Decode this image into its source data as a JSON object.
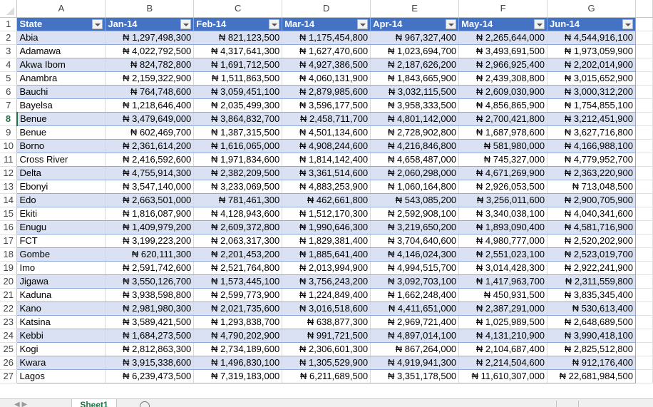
{
  "sheet": {
    "column_letters": [
      "A",
      "B",
      "C",
      "D",
      "E",
      "F",
      "G"
    ],
    "active_row": 8,
    "headers": [
      "State",
      "Jan-14",
      "Feb-14",
      "Mar-14",
      "Apr-14",
      "May-14",
      "Jun-14"
    ],
    "rows": [
      [
        "Abia",
        "₦ 1,297,498,300",
        "₦ 821,123,500",
        "₦ 1,175,454,800",
        "₦ 967,327,400",
        "₦ 2,265,644,000",
        "₦ 4,544,916,100"
      ],
      [
        "Adamawa",
        "₦ 4,022,792,500",
        "₦ 4,317,641,300",
        "₦ 1,627,470,600",
        "₦ 1,023,694,700",
        "₦ 3,493,691,500",
        "₦ 1,973,059,900"
      ],
      [
        "Akwa Ibom",
        "₦ 824,782,800",
        "₦ 1,691,712,500",
        "₦ 4,927,386,500",
        "₦ 2,187,626,200",
        "₦ 2,966,925,400",
        "₦ 2,202,014,900"
      ],
      [
        "Anambra",
        "₦ 2,159,322,900",
        "₦ 1,511,863,500",
        "₦ 4,060,131,900",
        "₦ 1,843,665,900",
        "₦ 2,439,308,800",
        "₦ 3,015,652,900"
      ],
      [
        "Bauchi",
        "₦ 764,748,600",
        "₦ 3,059,451,100",
        "₦ 2,879,985,600",
        "₦ 3,032,115,500",
        "₦ 2,609,030,900",
        "₦ 3,000,312,200"
      ],
      [
        "Bayelsa",
        "₦ 1,218,646,400",
        "₦ 2,035,499,300",
        "₦ 3,596,177,500",
        "₦ 3,958,333,500",
        "₦ 4,856,865,900",
        "₦ 1,754,855,100"
      ],
      [
        "Benue",
        "₦ 3,479,649,000",
        "₦ 3,864,832,700",
        "₦ 2,458,711,700",
        "₦ 4,801,142,000",
        "₦ 2,700,421,800",
        "₦ 3,212,451,900"
      ],
      [
        "Benue",
        "₦ 602,469,700",
        "₦ 1,387,315,500",
        "₦ 4,501,134,600",
        "₦ 2,728,902,800",
        "₦ 1,687,978,600",
        "₦ 3,627,716,800"
      ],
      [
        "Borno",
        "₦ 2,361,614,200",
        "₦ 1,616,065,000",
        "₦ 4,908,244,600",
        "₦ 4,216,846,800",
        "₦ 581,980,000",
        "₦ 4,166,988,100"
      ],
      [
        "Cross River",
        "₦ 2,416,592,600",
        "₦ 1,971,834,600",
        "₦ 1,814,142,400",
        "₦ 4,658,487,000",
        "₦ 745,327,000",
        "₦ 4,779,952,700"
      ],
      [
        "Delta",
        "₦ 4,755,914,300",
        "₦ 2,382,209,500",
        "₦ 3,361,514,600",
        "₦ 2,060,298,000",
        "₦ 4,671,269,900",
        "₦ 2,363,220,900"
      ],
      [
        "Ebonyi",
        "₦ 3,547,140,000",
        "₦ 3,233,069,500",
        "₦ 4,883,253,900",
        "₦ 1,060,164,800",
        "₦ 2,926,053,500",
        "₦ 713,048,500"
      ],
      [
        "Edo",
        "₦ 2,663,501,000",
        "₦ 781,461,300",
        "₦ 462,661,800",
        "₦ 543,085,200",
        "₦ 3,256,011,600",
        "₦ 2,900,705,900"
      ],
      [
        "Ekiti",
        "₦ 1,816,087,900",
        "₦ 4,128,943,600",
        "₦ 1,512,170,300",
        "₦ 2,592,908,100",
        "₦ 3,340,038,100",
        "₦ 4,040,341,600"
      ],
      [
        "Enugu",
        "₦ 1,409,979,200",
        "₦ 2,609,372,800",
        "₦ 1,990,646,300",
        "₦ 3,219,650,200",
        "₦ 1,893,090,400",
        "₦ 4,581,716,900"
      ],
      [
        "FCT",
        "₦ 3,199,223,200",
        "₦ 2,063,317,300",
        "₦ 1,829,381,400",
        "₦ 3,704,640,600",
        "₦ 4,980,777,000",
        "₦ 2,520,202,900"
      ],
      [
        "Gombe",
        "₦ 620,111,300",
        "₦ 2,201,453,200",
        "₦ 1,885,641,400",
        "₦ 4,146,024,300",
        "₦ 2,551,023,100",
        "₦ 2,523,019,700"
      ],
      [
        "Imo",
        "₦ 2,591,742,600",
        "₦ 2,521,764,800",
        "₦ 2,013,994,900",
        "₦ 4,994,515,700",
        "₦ 3,014,428,300",
        "₦ 2,922,241,900"
      ],
      [
        "Jigawa",
        "₦ 3,550,126,700",
        "₦ 1,573,445,100",
        "₦ 3,756,243,200",
        "₦ 3,092,703,100",
        "₦ 1,417,963,700",
        "₦ 2,311,559,800"
      ],
      [
        "Kaduna",
        "₦ 3,938,598,800",
        "₦ 2,599,773,900",
        "₦ 1,224,849,400",
        "₦ 1,662,248,400",
        "₦ 450,931,500",
        "₦ 3,835,345,400"
      ],
      [
        "Kano",
        "₦ 2,981,980,300",
        "₦ 2,021,735,600",
        "₦ 3,016,518,600",
        "₦ 4,411,651,000",
        "₦ 2,387,291,000",
        "₦ 530,613,400"
      ],
      [
        "Katsina",
        "₦ 3,589,421,500",
        "₦ 1,293,838,700",
        "₦ 638,877,300",
        "₦ 2,969,721,400",
        "₦ 1,025,989,500",
        "₦ 2,648,689,500"
      ],
      [
        "Kebbi",
        "₦ 1,684,273,500",
        "₦ 4,790,202,900",
        "₦ 991,721,500",
        "₦ 4,897,014,100",
        "₦ 4,131,210,900",
        "₦ 3,990,418,100"
      ],
      [
        "Kogi",
        "₦ 2,812,863,300",
        "₦ 2,734,189,600",
        "₦ 2,306,601,300",
        "₦ 867,264,000",
        "₦ 2,104,687,400",
        "₦ 2,825,512,800"
      ],
      [
        "Kwara",
        "₦ 3,915,338,600",
        "₦ 1,496,830,100",
        "₦ 1,305,529,900",
        "₦ 4,919,941,300",
        "₦ 2,214,504,600",
        "₦ 912,176,400"
      ],
      [
        "Lagos",
        "₦ 6,239,473,500",
        "₦ 7,319,183,000",
        "₦ 6,211,689,500",
        "₦ 3,351,178,500",
        "₦ 11,610,307,000",
        "₦ 22,681,984,500"
      ]
    ]
  },
  "tabs": {
    "active_sheet": "Sheet1"
  },
  "colors": {
    "header_bg": "#4472c4",
    "band_bg": "#d9e1f2",
    "active_green": "#217346"
  }
}
